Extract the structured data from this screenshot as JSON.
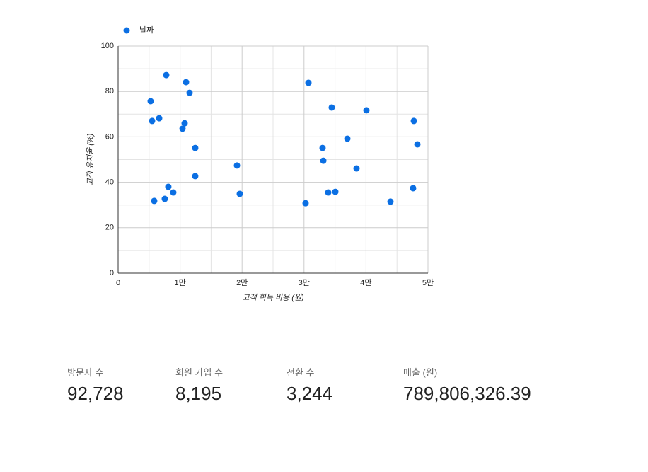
{
  "chart_data": {
    "type": "scatter",
    "x_label": "고객 획득 비용 (원)",
    "y_label": "고객 유지율 (%)",
    "series": [
      {
        "name": "날짜",
        "color": "#0b6fe3",
        "x": [
          5250,
          5480,
          5820,
          6620,
          7760,
          7530,
          8100,
          8900,
          10390,
          10730,
          10960,
          11530,
          12440,
          12440,
          19180,
          19630,
          30250,
          30710,
          32990,
          33110,
          33900,
          34470,
          35050,
          36990,
          38470,
          40070,
          43950,
          47600,
          47720,
          48290
        ],
        "values": [
          75.7,
          67.0,
          31.8,
          68.2,
          87.2,
          32.7,
          38.0,
          35.5,
          63.6,
          66.0,
          84.1,
          79.4,
          55.1,
          42.7,
          47.4,
          34.9,
          30.8,
          83.8,
          55.1,
          49.5,
          35.5,
          72.9,
          35.8,
          59.2,
          46.1,
          71.7,
          31.5,
          37.4,
          67.0,
          56.7
        ]
      }
    ],
    "xlim": [
      0,
      50000
    ],
    "xticks": [
      0,
      {
        "value": 10000,
        "label": "1만"
      },
      {
        "value": 20000,
        "label": "2만"
      },
      {
        "value": 30000,
        "label": "3만"
      },
      {
        "value": 40000,
        "label": "4만"
      },
      {
        "value": 50000,
        "label": "5만"
      }
    ],
    "ylim": [
      0,
      100
    ],
    "yticks": [
      0,
      20,
      40,
      60,
      80,
      100
    ],
    "grid": true,
    "minor_grid": true,
    "legend": "top-left"
  },
  "scorecards": [
    {
      "label": "방문자 수",
      "value": "92,728"
    },
    {
      "label": "회원 가입 수",
      "value": "8,195"
    },
    {
      "label": "전환 수",
      "value": "3,244"
    },
    {
      "label": "매출 (원)",
      "value": "789,806,326.39"
    }
  ]
}
